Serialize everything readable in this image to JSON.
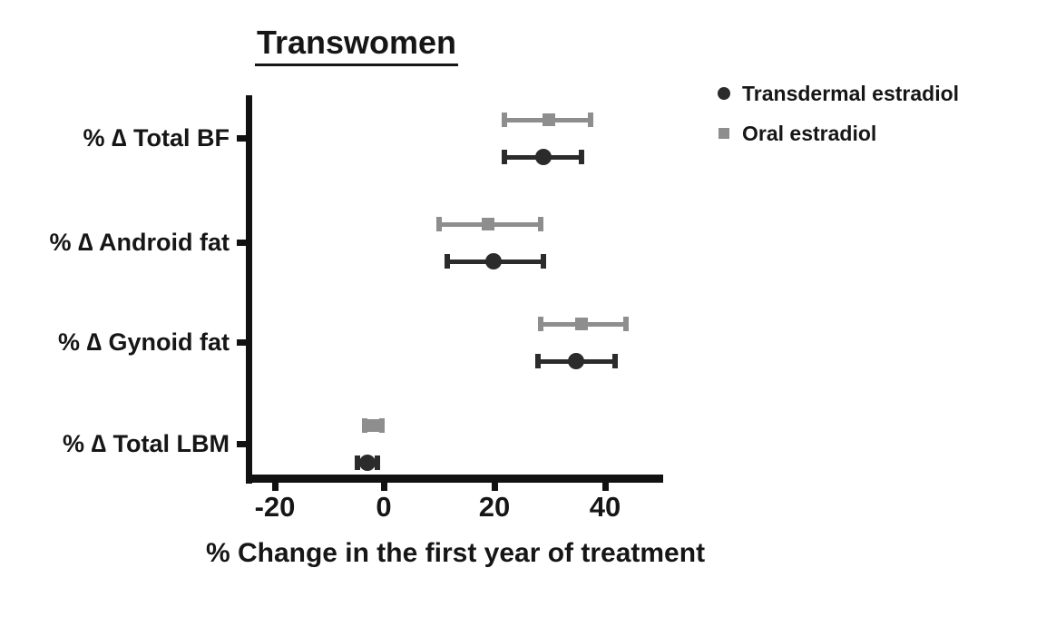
{
  "chart_data": {
    "type": "scatter",
    "subtype": "horizontal-error-bar",
    "title": "Transwomen",
    "xlabel": "% Change in the first year of treatment",
    "ylabel": "",
    "categories": [
      "% ∆ Total BF",
      "% ∆ Android fat",
      "% ∆ Gynoid fat",
      "% ∆ Total LBM"
    ],
    "x_ticks": [
      "-20",
      "0",
      "20",
      "40"
    ],
    "x_tick_values": [
      -20,
      0,
      20,
      40
    ],
    "xlim": [
      -25,
      50.5
    ],
    "grid": false,
    "legend_position": "top-right",
    "axis_color": "#111111",
    "series": [
      {
        "name": "Transdermal estradiol",
        "marker": "circle",
        "color": "#2b2b2b",
        "values": [
          29,
          20,
          35,
          -3
        ],
        "ci_low": [
          22,
          11.5,
          28,
          -4.8
        ],
        "ci_high": [
          36,
          29,
          42,
          -1.2
        ]
      },
      {
        "name": "Oral estradiol",
        "marker": "square",
        "color": "#8e8e8e",
        "values": [
          30,
          19,
          36,
          -2
        ],
        "ci_low": [
          22,
          10,
          28.5,
          -3.5
        ],
        "ci_high": [
          37.5,
          28.5,
          44,
          -0.3
        ]
      }
    ]
  }
}
